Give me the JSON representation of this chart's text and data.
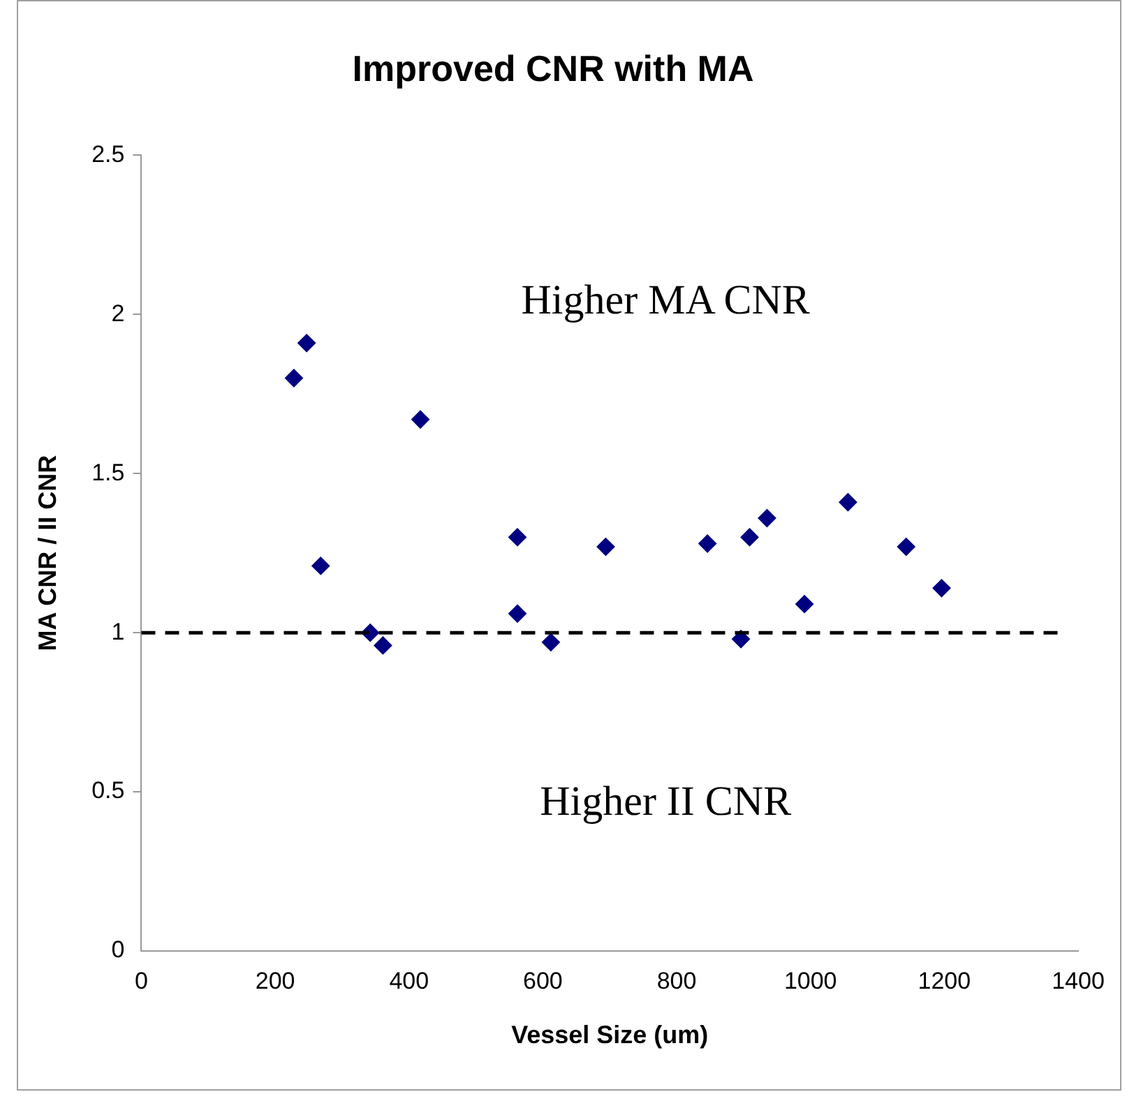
{
  "chart_data": {
    "type": "scatter",
    "title": "Improved CNR with MA",
    "xlabel": "Vessel Size (um)",
    "ylabel": "MA CNR / II CNR",
    "x": [
      247,
      228,
      417,
      268,
      342,
      361,
      562,
      562,
      612,
      694,
      846,
      909,
      935,
      896,
      991,
      1056,
      1143,
      1196
    ],
    "series": [
      {
        "color": "#000080",
        "values": [
          1.91,
          1.8,
          1.67,
          1.21,
          1.0,
          0.96,
          1.3,
          1.06,
          0.97,
          1.27,
          1.28,
          1.3,
          1.36,
          0.98,
          1.09,
          1.41,
          1.27,
          1.14
        ]
      }
    ],
    "xlim": [
      0,
      1400
    ],
    "xticks": [
      0,
      200,
      400,
      600,
      800,
      1000,
      1200,
      1400
    ],
    "ylim": [
      0,
      2.5
    ],
    "yticks": [
      0,
      0.5,
      1,
      1.5,
      2,
      2.5
    ],
    "ref_lines": [
      {
        "axis": "y",
        "value": 1,
        "color": "#000000",
        "line_style": "dashed"
      }
    ],
    "annotations": [
      "Higher MA CNR",
      "Higher II CNR"
    ],
    "marker": "diamond",
    "grid": false,
    "legend": false
  }
}
